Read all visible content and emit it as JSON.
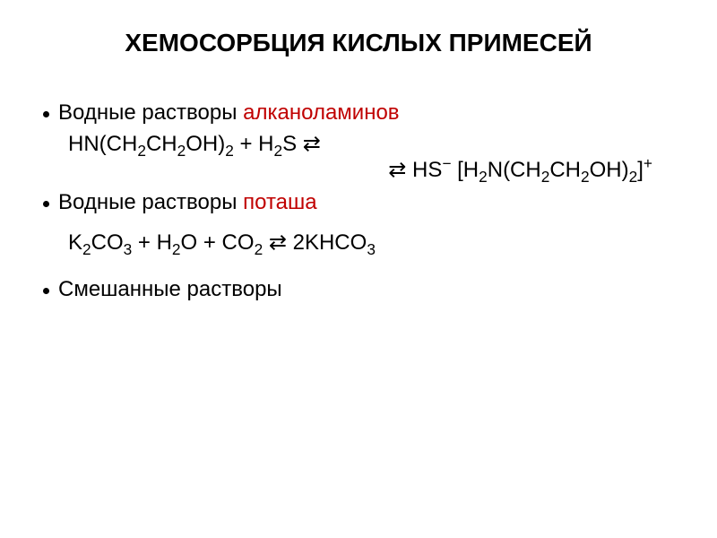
{
  "slide": {
    "title": "ХЕМОСОРБЦИЯ КИСЛЫХ ПРИМЕСЕЙ",
    "title_fontsize": 28,
    "title_color": "#000000",
    "background_color": "#ffffff",
    "bullet_fontsize": 24,
    "bullet_color": "#000000",
    "highlight_color": "#c00000",
    "equation_fontsize": 24,
    "equation_color": "#000000",
    "dot_color": "#000000",
    "items": [
      {
        "prefix": "Водные растворы ",
        "highlight": "алканоламинов",
        "suffix": "",
        "equations": [
          {
            "html": "HN(CH<sub>2</sub>CH<sub>2</sub>OH)<sub>2</sub> + H<sub>2</sub>S  ⇄",
            "align": "left"
          },
          {
            "html": "⇄ HS<sup>&minus;</sup> [H<sub>2</sub>N(CH<sub>2</sub>CH<sub>2</sub>OH)<sub>2</sub>]<sup>+</sup>",
            "align": "right"
          }
        ]
      },
      {
        "prefix": "Водные растворы ",
        "highlight": "поташа",
        "suffix": "",
        "equations": [
          {
            "html": "K<sub>2</sub>CO<sub>3</sub> + H<sub>2</sub>O + CO<sub>2</sub> ⇄ 2KHCO<sub>3</sub>",
            "align": "left"
          }
        ]
      },
      {
        "prefix": "Смешанные растворы",
        "highlight": "",
        "suffix": "",
        "equations": []
      }
    ]
  }
}
